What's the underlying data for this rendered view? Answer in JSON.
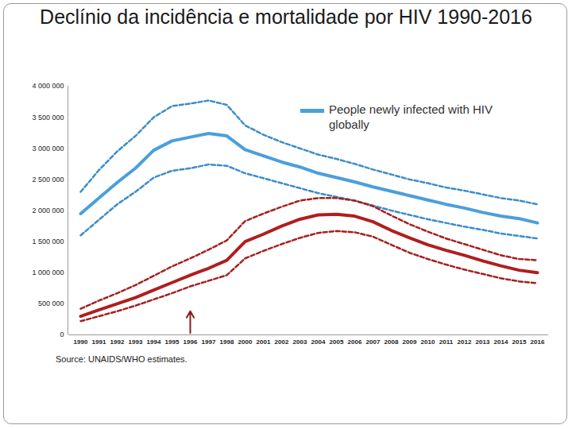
{
  "chart_data": {
    "type": "line",
    "title": "Declínio da incidência e mortalidade por HIV 1990-2016",
    "categories": [
      1990,
      1991,
      1992,
      1993,
      1994,
      1995,
      1996,
      1997,
      1998,
      2000,
      2001,
      2002,
      2003,
      2004,
      2005,
      2006,
      2007,
      2008,
      2009,
      2010,
      2011,
      2012,
      2013,
      2014,
      2015,
      2016
    ],
    "series": [
      {
        "name": "People newly infected with HIV globally",
        "color": "#4a9fdc",
        "line_style": "solid",
        "values": [
          1950000,
          2200000,
          2450000,
          2680000,
          2970000,
          3120000,
          3180000,
          3240000,
          3200000,
          2980000,
          2880000,
          2780000,
          2700000,
          2600000,
          2530000,
          2460000,
          2380000,
          2310000,
          2240000,
          2170000,
          2100000,
          2040000,
          1970000,
          1910000,
          1870000,
          1800000
        ]
      },
      {
        "color": "#3d8cc8",
        "line_style": "dashed",
        "values": [
          2300000,
          2650000,
          2950000,
          3200000,
          3500000,
          3680000,
          3720000,
          3770000,
          3700000,
          3370000,
          3220000,
          3100000,
          3000000,
          2900000,
          2830000,
          2750000,
          2660000,
          2580000,
          2500000,
          2440000,
          2370000,
          2320000,
          2260000,
          2200000,
          2160000,
          2100000
        ]
      },
      {
        "color": "#3d8cc8",
        "line_style": "dashed",
        "values": [
          1600000,
          1850000,
          2100000,
          2300000,
          2530000,
          2640000,
          2680000,
          2740000,
          2720000,
          2600000,
          2520000,
          2440000,
          2360000,
          2280000,
          2220000,
          2160000,
          2080000,
          2000000,
          1930000,
          1860000,
          1800000,
          1740000,
          1690000,
          1630000,
          1590000,
          1550000
        ]
      },
      {
        "color": "#b01e1e",
        "line_style": "solid",
        "values": [
          300000,
          400000,
          500000,
          600000,
          720000,
          840000,
          960000,
          1070000,
          1200000,
          1500000,
          1620000,
          1750000,
          1860000,
          1930000,
          1940000,
          1910000,
          1820000,
          1680000,
          1560000,
          1450000,
          1360000,
          1280000,
          1190000,
          1110000,
          1040000,
          1000000
        ]
      },
      {
        "color": "#a52020",
        "line_style": "dashed",
        "values": [
          420000,
          550000,
          670000,
          800000,
          950000,
          1100000,
          1230000,
          1370000,
          1520000,
          1830000,
          1950000,
          2060000,
          2160000,
          2200000,
          2200000,
          2160000,
          2070000,
          1920000,
          1780000,
          1660000,
          1550000,
          1460000,
          1370000,
          1280000,
          1220000,
          1200000
        ]
      },
      {
        "color": "#a52020",
        "line_style": "dashed",
        "values": [
          220000,
          300000,
          380000,
          470000,
          570000,
          670000,
          780000,
          870000,
          960000,
          1230000,
          1350000,
          1460000,
          1560000,
          1640000,
          1670000,
          1650000,
          1580000,
          1450000,
          1320000,
          1220000,
          1130000,
          1050000,
          980000,
          910000,
          860000,
          830000
        ]
      }
    ],
    "ylim": [
      0,
      4000000
    ],
    "yticks": [
      0,
      {
        "value": 500000,
        "label": "500 000"
      },
      {
        "value": 1000000,
        "label": "1 000 000"
      },
      {
        "value": 1500000,
        "label": "1 500 000"
      },
      {
        "value": 2000000,
        "label": "2 000 000"
      },
      {
        "value": 2500000,
        "label": "2 500 000"
      },
      {
        "value": 3000000,
        "label": "3 000 000"
      },
      {
        "value": 3500000,
        "label": "3 500 000"
      },
      {
        "value": 4000000,
        "label": "4 000 000"
      }
    ],
    "grid": false,
    "legend": "top-right",
    "annotations": [
      {
        "type": "arrow",
        "x": 1996,
        "from": 30000,
        "to": 380000,
        "color": "#8b1a1a"
      }
    ],
    "caption": "Source: UNAIDS/WHO estimates."
  }
}
